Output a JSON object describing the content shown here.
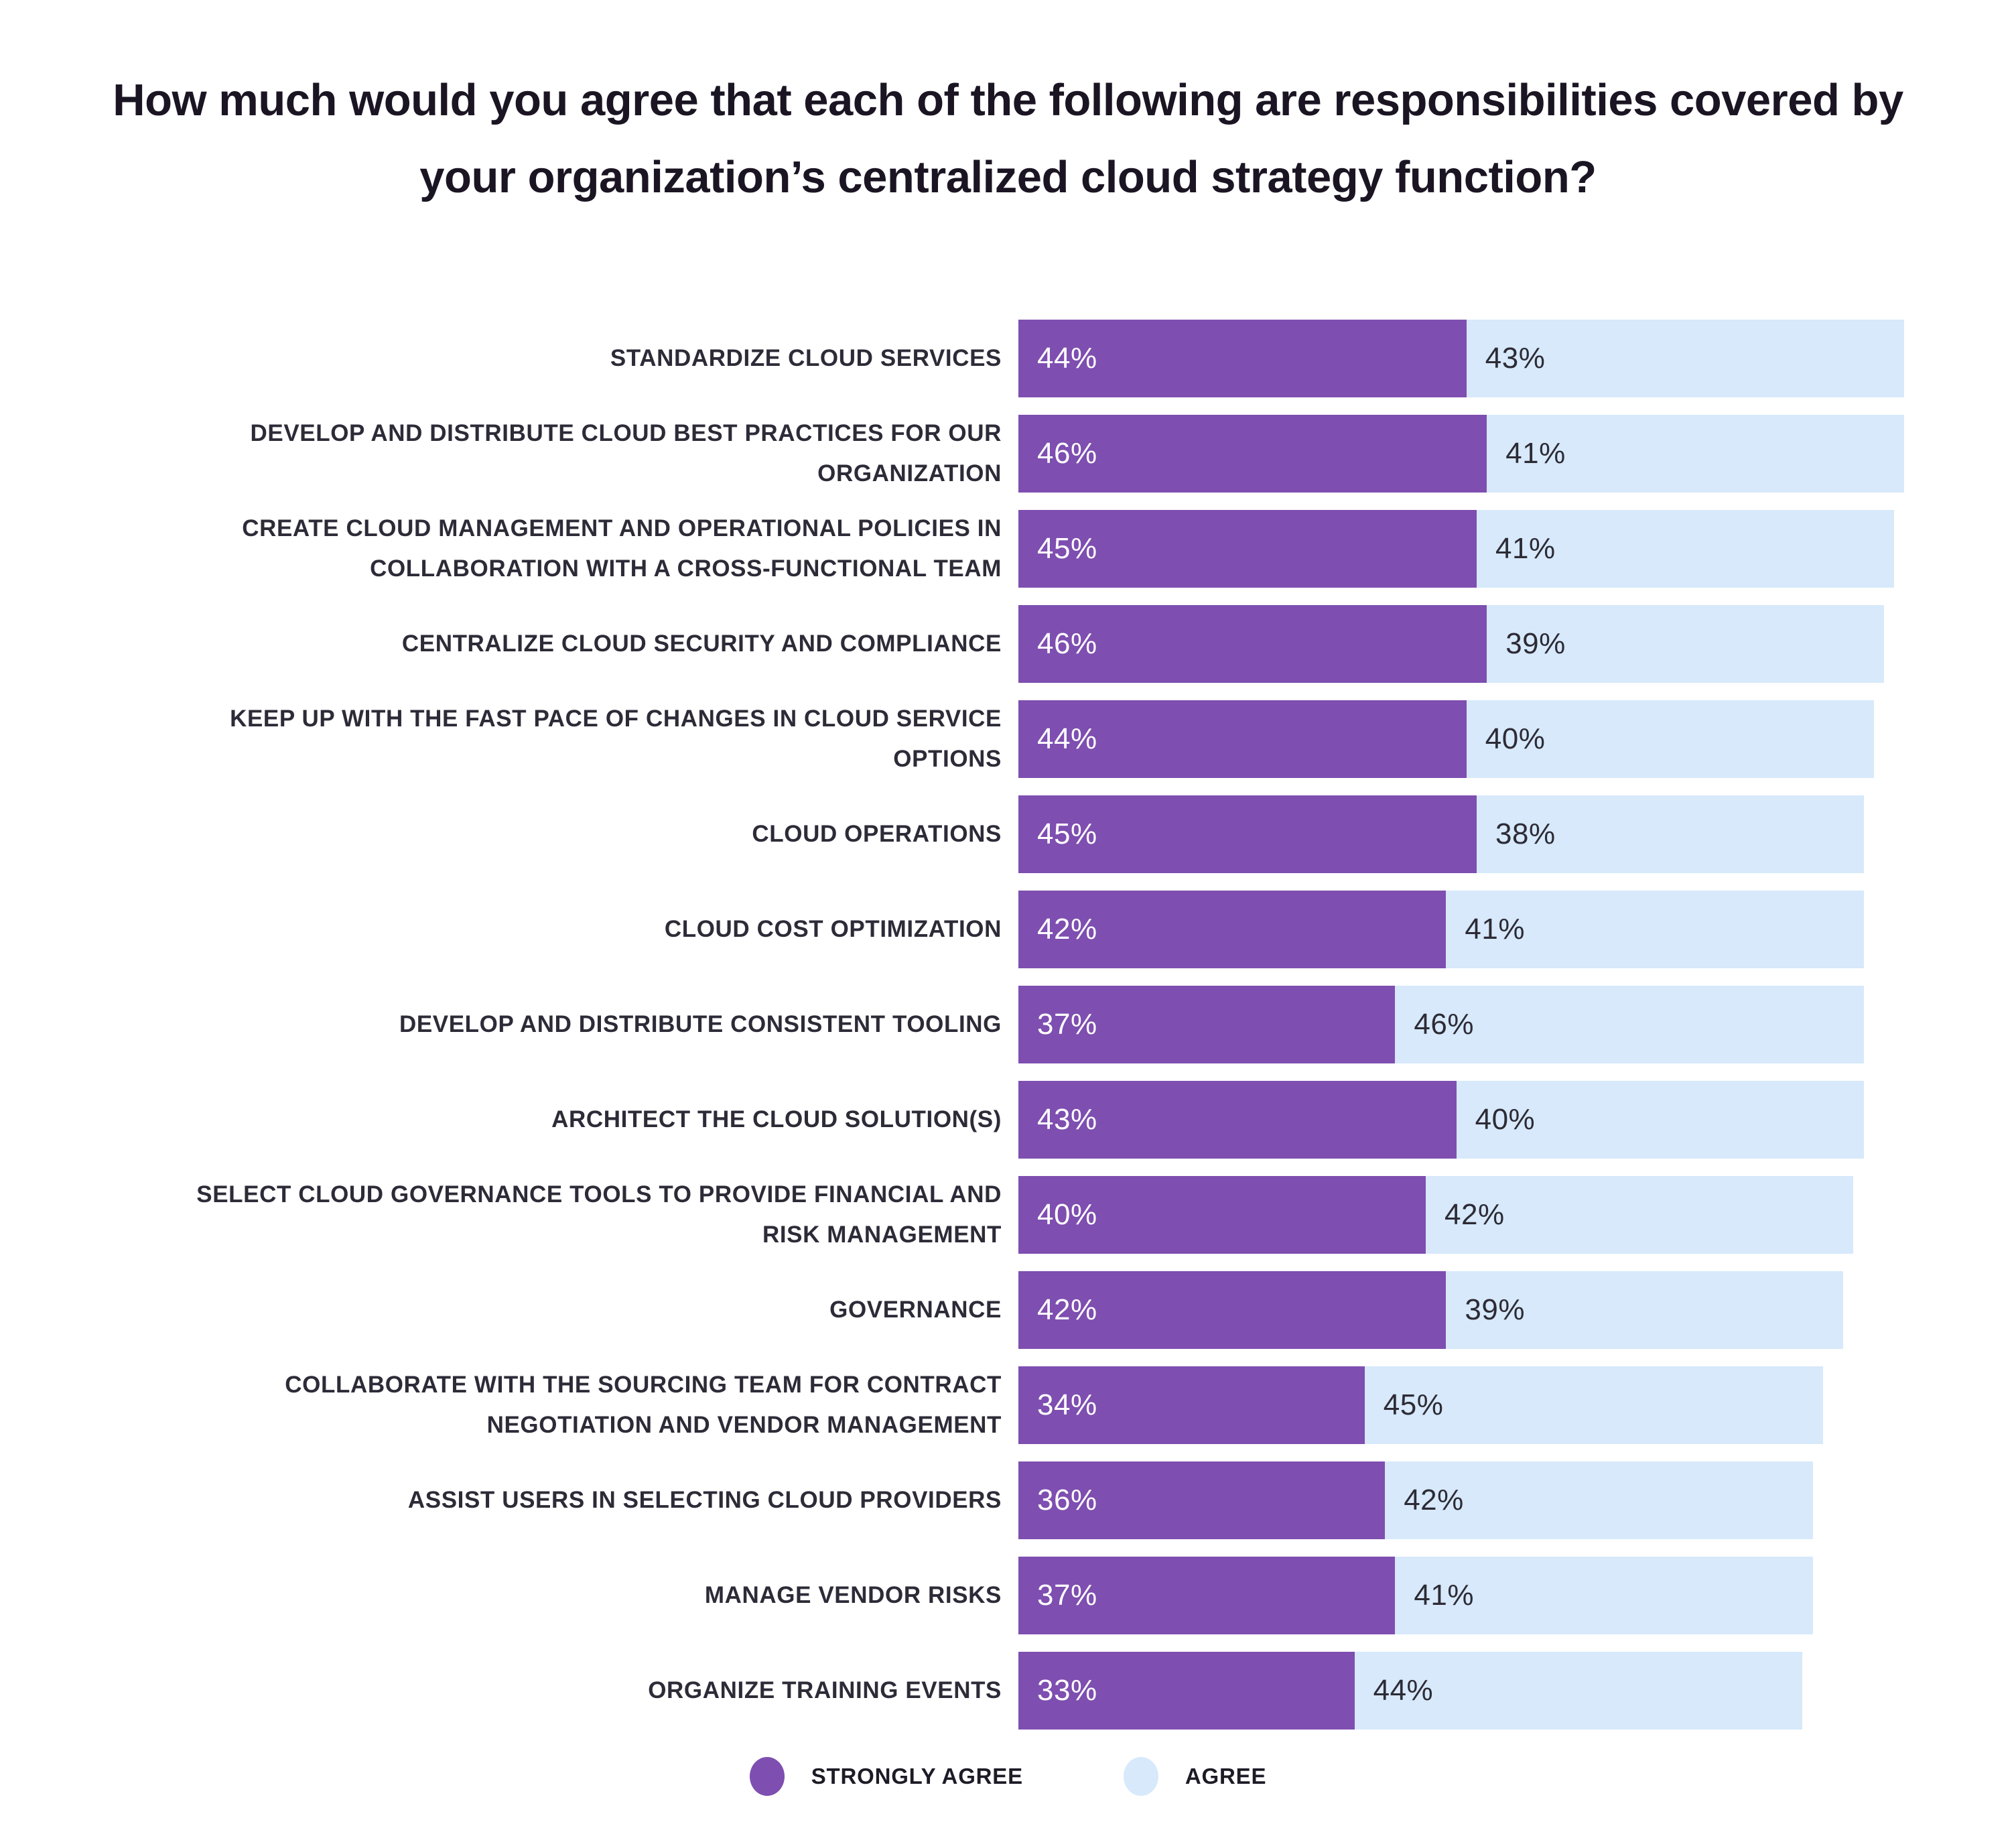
{
  "title": "How much would you agree that each of the following are responsibilities covered by your organization’s centralized cloud strategy function?",
  "colors": {
    "strongly_agree": "#7e4eb0",
    "agree": "#d7e9fb",
    "title_text": "#1b1523",
    "label_text": "#2e2b38",
    "value_on_purple": "#ffffff",
    "value_on_blue": "#2d2b35",
    "background": "#ffffff"
  },
  "legend": {
    "items": [
      {
        "label": "STRONGLY AGREE",
        "color": "#7e4eb0"
      },
      {
        "label": "AGREE",
        "color": "#d7e9fb"
      }
    ]
  },
  "chart_data": {
    "type": "bar",
    "orientation": "horizontal",
    "stacked": true,
    "value_suffix": "%",
    "axis_range_percent": [
      0,
      100
    ],
    "grid": false,
    "legend_position": "bottom-center",
    "categories": [
      "STANDARDIZE CLOUD SERVICES",
      "DEVELOP AND DISTRIBUTE CLOUD BEST PRACTICES FOR OUR ORGANIZATION",
      "CREATE CLOUD MANAGEMENT AND OPERATIONAL POLICIES IN COLLABORATION WITH A CROSS-FUNCTIONAL TEAM",
      "CENTRALIZE CLOUD SECURITY AND COMPLIANCE",
      "KEEP UP WITH THE FAST PACE OF CHANGES IN CLOUD SERVICE OPTIONS",
      "CLOUD OPERATIONS",
      "CLOUD COST OPTIMIZATION",
      "DEVELOP AND DISTRIBUTE CONSISTENT TOOLING",
      "ARCHITECT THE CLOUD SOLUTION(S)",
      "SELECT CLOUD GOVERNANCE TOOLS TO PROVIDE FINANCIAL AND RISK MANAGEMENT",
      "GOVERNANCE",
      "COLLABORATE WITH THE SOURCING TEAM FOR CONTRACT NEGOTIATION AND VENDOR MANAGEMENT",
      "ASSIST USERS IN SELECTING CLOUD PROVIDERS",
      "MANAGE VENDOR RISKS",
      "ORGANIZE TRAINING EVENTS"
    ],
    "series": [
      {
        "name": "STRONGLY AGREE",
        "color": "#7e4eb0",
        "values": [
          44,
          46,
          45,
          46,
          44,
          45,
          42,
          37,
          43,
          40,
          42,
          34,
          36,
          37,
          33
        ]
      },
      {
        "name": "AGREE",
        "color": "#d7e9fb",
        "values": [
          43,
          41,
          41,
          39,
          40,
          38,
          41,
          46,
          40,
          42,
          39,
          45,
          42,
          41,
          44
        ]
      }
    ]
  }
}
